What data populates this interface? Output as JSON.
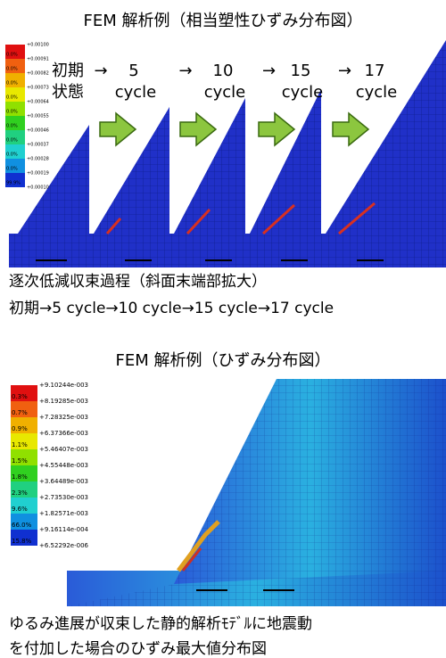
{
  "title1": "FEM 解析例（相当塑性ひずみ分布図）",
  "top_figure": {
    "legend": {
      "values": [
        "+0.00100",
        "+0.00091",
        "+0.00082",
        "+0.00073",
        "+0.00064",
        "+0.00055",
        "+0.00046",
        "+0.00037",
        "+0.00028",
        "+0.00019",
        "+0.00010"
      ],
      "percents": [
        "0.0%",
        "0.0%",
        "0.0%",
        "0.0%",
        "0.0%",
        "0.0%",
        "0.0%",
        "0.0%",
        "0.0%",
        "99.9%"
      ]
    },
    "stages": [
      {
        "top": "初期",
        "bottom": "状態"
      },
      {
        "top": "5",
        "bottom": "cycle"
      },
      {
        "top": "10",
        "bottom": "cycle"
      },
      {
        "top": "15",
        "bottom": "cycle"
      },
      {
        "top": "17",
        "bottom": "cycle"
      }
    ],
    "arrow": "→"
  },
  "caption1": [
    "逐次低減収束過程（斜面末端部拡大）",
    "初期→5 cycle→10 cycle→15 cycle→17 cycle"
  ],
  "title2": "FEM 解析例（ひずみ分布図）",
  "bottom_figure": {
    "legend": {
      "values": [
        "+9.10244e-003",
        "+8.19285e-003",
        "+7.28325e-003",
        "+6.37366e-003",
        "+5.46407e-003",
        "+4.55448e-003",
        "+3.64489e-003",
        "+2.73530e-003",
        "+1.82571e-003",
        "+9.16114e-004",
        "+6.52292e-006"
      ],
      "percents": [
        "0.3%",
        "0.7%",
        "0.9%",
        "1.1%",
        "1.5%",
        "1.8%",
        "2.3%",
        "9.6%",
        "66.0%",
        "15.8%"
      ]
    }
  },
  "caption2": [
    "ゆるみ進展が収束した静的解析ﾓﾃﾞﾙに地震動",
    "を付加した場合のひずみ最大値分布図"
  ]
}
